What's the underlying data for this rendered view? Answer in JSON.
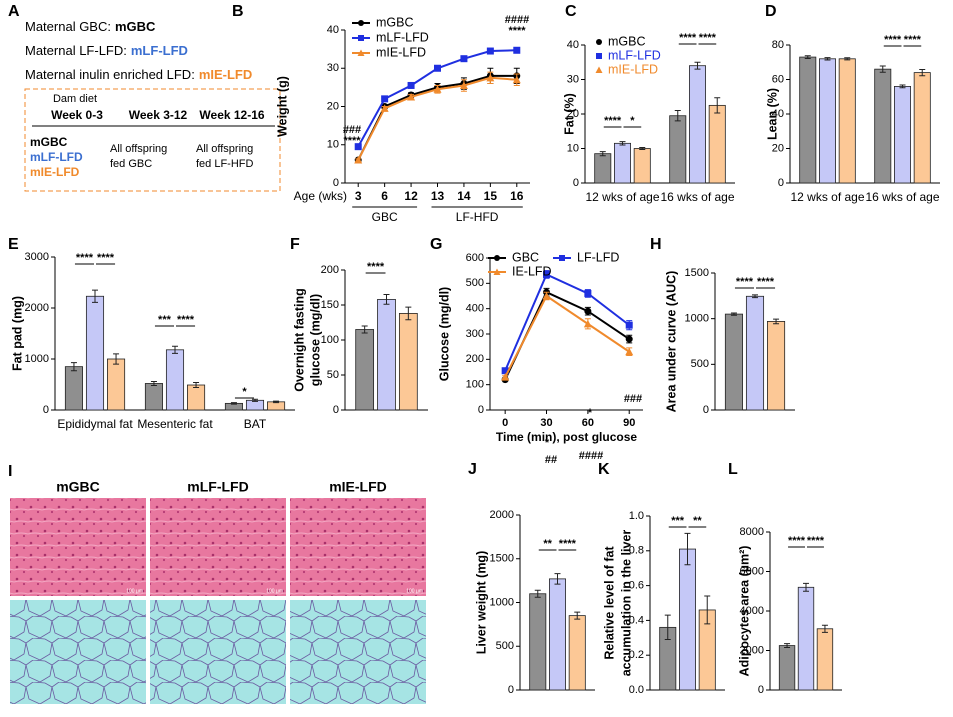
{
  "panel_a": {
    "label": "A",
    "lines": [
      [
        "Maternal GBC:",
        "mGBC"
      ],
      [
        "Maternal LF-LFD:",
        "mLF-LFD"
      ],
      [
        "Maternal inulin enriched LFD:",
        "mIE-LFD"
      ]
    ],
    "table": {
      "title": "Dam diet",
      "columns": [
        "Week 0-3",
        "Week 3-12",
        "Week 12-16"
      ],
      "diets": [
        "mGBC",
        "mLF-LFD",
        "mIE-LFD"
      ],
      "col2": [
        "All offspring",
        "fed GBC"
      ],
      "col3": [
        "All offspring",
        "fed LF-HFD"
      ]
    }
  },
  "chart_data": [
    {
      "panel": "B",
      "type": "line",
      "ylabel": "Weight (g)",
      "xlabel": "Age (wks)",
      "categories": [
        "3",
        "6",
        "12",
        "13",
        "14",
        "15",
        "16"
      ],
      "x_groups": [
        "GBC",
        "LF-HFD"
      ],
      "ylim": [
        0,
        40
      ],
      "yticks": [
        0,
        10,
        20,
        30,
        40
      ],
      "legend": "upper left",
      "series": [
        {
          "name": "mGBC",
          "color": "#000000",
          "marker": "circle",
          "values": [
            6,
            20,
            23,
            25,
            26,
            28,
            28
          ],
          "errors": [
            0.3,
            0.5,
            0.6,
            1,
            1.5,
            2,
            2
          ]
        },
        {
          "name": "mLF-LFD",
          "color": "#1f2fe0",
          "marker": "square",
          "values": [
            9.5,
            22,
            25.5,
            30,
            32.5,
            34.5,
            34.7
          ],
          "errors": [
            0.3,
            0.5,
            0.5,
            0.6,
            0.6,
            0.6,
            0.6
          ]
        },
        {
          "name": "mIE-LFD",
          "color": "#f08a2c",
          "marker": "triangle",
          "values": [
            6,
            19.5,
            22.5,
            24.5,
            25.5,
            27.5,
            27
          ],
          "errors": [
            0.3,
            0.5,
            0.6,
            1,
            1.5,
            1.5,
            1.5
          ]
        }
      ],
      "annotations": [
        "###",
        "****",
        "####",
        "****"
      ]
    },
    {
      "panel": "C",
      "type": "bar",
      "ylabel": "Fat (%)",
      "categories": [
        "12 wks of age",
        "16 wks of age"
      ],
      "ylim": [
        0,
        40
      ],
      "yticks": [
        0,
        10,
        20,
        30,
        40
      ],
      "legend": "upper left",
      "series": [
        {
          "name": "mGBC",
          "color": "#8f8f8f",
          "marker_color": "#000000",
          "marker": "circle",
          "values": [
            8.5,
            19.5
          ],
          "errors": [
            0.6,
            1.5
          ]
        },
        {
          "name": "mLF-LFD",
          "color": "#c5c8f7",
          "marker_color": "#1f2fe0",
          "marker": "square",
          "values": [
            11.5,
            34
          ],
          "errors": [
            0.5,
            1
          ]
        },
        {
          "name": "mIE-LFD",
          "color": "#fcc896",
          "marker_color": "#f08a2c",
          "marker": "triangle",
          "values": [
            10,
            22.5
          ],
          "errors": [
            0.3,
            2.2
          ]
        }
      ],
      "annotations": [
        "****",
        "*",
        "****",
        "****"
      ]
    },
    {
      "panel": "D",
      "type": "bar",
      "ylabel": "Lean (%)",
      "categories": [
        "12 wks of age",
        "16 wks of age"
      ],
      "ylim": [
        0,
        80
      ],
      "yticks": [
        0,
        20,
        40,
        60,
        80
      ],
      "series": [
        {
          "color": "#8f8f8f",
          "values": [
            73,
            66
          ],
          "errors": [
            0.8,
            1.8
          ]
        },
        {
          "color": "#c5c8f7",
          "values": [
            72,
            56
          ],
          "errors": [
            0.7,
            0.8
          ]
        },
        {
          "color": "#fcc896",
          "values": [
            72,
            64
          ],
          "errors": [
            0.6,
            1.8
          ]
        }
      ],
      "annotations": [
        "****",
        "****"
      ]
    },
    {
      "panel": "E",
      "type": "bar",
      "ylabel": "Fat pad (mg)",
      "categories": [
        "Epididymal fat",
        "Mesenteric fat",
        "BAT"
      ],
      "ylim": [
        0,
        3000
      ],
      "yticks": [
        0,
        1000,
        2000,
        3000
      ],
      "series": [
        {
          "color": "#8f8f8f",
          "values": [
            850,
            520,
            130
          ],
          "errors": [
            80,
            40,
            15
          ]
        },
        {
          "color": "#c5c8f7",
          "values": [
            2230,
            1180,
            190
          ],
          "errors": [
            120,
            70,
            20
          ]
        },
        {
          "color": "#fcc896",
          "values": [
            1000,
            490,
            160
          ],
          "errors": [
            100,
            50,
            15
          ]
        }
      ],
      "annotations": [
        "****",
        "****",
        "***",
        "****",
        "*"
      ]
    },
    {
      "panel": "F",
      "type": "bar",
      "ylabel": [
        "Overnight fasting",
        "glucose (mg/dl)"
      ],
      "categories": [
        null
      ],
      "ylim": [
        0,
        200
      ],
      "yticks": [
        0,
        50,
        100,
        150,
        200
      ],
      "series": [
        {
          "color": "#8f8f8f",
          "values": [
            115
          ],
          "errors": [
            5
          ]
        },
        {
          "color": "#c5c8f7",
          "values": [
            158
          ],
          "errors": [
            7
          ]
        },
        {
          "color": "#fcc896",
          "values": [
            138
          ],
          "errors": [
            9
          ]
        }
      ],
      "annotations": [
        "****"
      ]
    },
    {
      "panel": "G",
      "type": "line",
      "ylabel": "Glucose (mg/dl)",
      "xlabel": "Time (min), post glucose",
      "x": [
        0,
        30,
        60,
        90
      ],
      "xlim": [
        -11,
        100
      ],
      "xticks": [
        0,
        30,
        60,
        90
      ],
      "ylim": [
        0,
        600
      ],
      "yticks": [
        0,
        100,
        200,
        300,
        400,
        500,
        600
      ],
      "legend": "top",
      "series": [
        {
          "name": "GBC",
          "color": "#000000",
          "marker": "circle",
          "values": [
            120,
            465,
            390,
            280
          ],
          "errors": [
            5,
            15,
            15,
            15
          ]
        },
        {
          "name": "LF-LFD",
          "color": "#1f2fe0",
          "marker": "square",
          "values": [
            155,
            535,
            460,
            335
          ],
          "errors": [
            8,
            15,
            15,
            18
          ]
        },
        {
          "name": "IE-LFD",
          "color": "#f08a2c",
          "marker": "triangle",
          "values": [
            130,
            450,
            340,
            230
          ],
          "errors": [
            5,
            15,
            20,
            15
          ]
        }
      ],
      "annotations": [
        "*",
        "##",
        "*",
        "####",
        "###"
      ]
    },
    {
      "panel": "H",
      "type": "bar",
      "ylabel": "Area under curve (AUC)",
      "categories": [
        null
      ],
      "ylim": [
        0,
        1500
      ],
      "yticks": [
        0,
        500,
        1000,
        1500
      ],
      "series": [
        {
          "color": "#8f8f8f",
          "values": [
            1050
          ],
          "errors": [
            12
          ]
        },
        {
          "color": "#c5c8f7",
          "values": [
            1245
          ],
          "errors": [
            15
          ]
        },
        {
          "color": "#fcc896",
          "values": [
            970
          ],
          "errors": [
            25
          ]
        }
      ],
      "annotations": [
        "****",
        "****"
      ]
    },
    {
      "panel": "J",
      "type": "bar",
      "ylabel": "Liver weight (mg)",
      "categories": [
        null
      ],
      "ylim": [
        0,
        2000
      ],
      "yticks": [
        0,
        500,
        1000,
        1500,
        2000
      ],
      "series": [
        {
          "color": "#8f8f8f",
          "values": [
            1100
          ],
          "errors": [
            40
          ]
        },
        {
          "color": "#c5c8f7",
          "values": [
            1270
          ],
          "errors": [
            60
          ]
        },
        {
          "color": "#fcc896",
          "values": [
            850
          ],
          "errors": [
            40
          ]
        }
      ],
      "annotations": [
        "**",
        "****"
      ]
    },
    {
      "panel": "K",
      "type": "bar",
      "ylabel": [
        "Relative level of fat",
        "accumulation in the liver"
      ],
      "categories": [
        null
      ],
      "ylim": [
        0,
        1.0
      ],
      "yticks": [
        {
          "value": 0,
          "label": "0.0"
        },
        {
          "value": 0.2,
          "label": "0.2"
        },
        {
          "value": 0.4,
          "label": "0.4"
        },
        {
          "value": 0.6,
          "label": "0.6"
        },
        {
          "value": 0.8,
          "label": "0.8"
        },
        {
          "value": 1.0,
          "label": "1.0"
        }
      ],
      "series": [
        {
          "color": "#8f8f8f",
          "values": [
            0.36
          ],
          "errors": [
            0.07
          ]
        },
        {
          "color": "#c5c8f7",
          "values": [
            0.81
          ],
          "errors": [
            0.09
          ]
        },
        {
          "color": "#fcc896",
          "values": [
            0.46
          ],
          "errors": [
            0.08
          ]
        }
      ],
      "annotations": [
        "***",
        "**"
      ]
    },
    {
      "panel": "L",
      "type": "bar",
      "ylabel": "Adipocytes area (µm²)",
      "categories": [
        null
      ],
      "ylim": [
        0,
        8000
      ],
      "yticks": [
        0,
        2000,
        4000,
        6000,
        8000
      ],
      "series": [
        {
          "color": "#8f8f8f",
          "values": [
            2250
          ],
          "errors": [
            100
          ]
        },
        {
          "color": "#c5c8f7",
          "values": [
            5200
          ],
          "errors": [
            200
          ]
        },
        {
          "color": "#fcc896",
          "values": [
            3100
          ],
          "errors": [
            180
          ]
        }
      ],
      "annotations": [
        "****",
        "****"
      ]
    }
  ],
  "panel_i": {
    "label": "I",
    "columns": [
      "mGBC",
      "mLF-LFD",
      "mIE-LFD"
    ],
    "scale_bar": "100 µm"
  }
}
